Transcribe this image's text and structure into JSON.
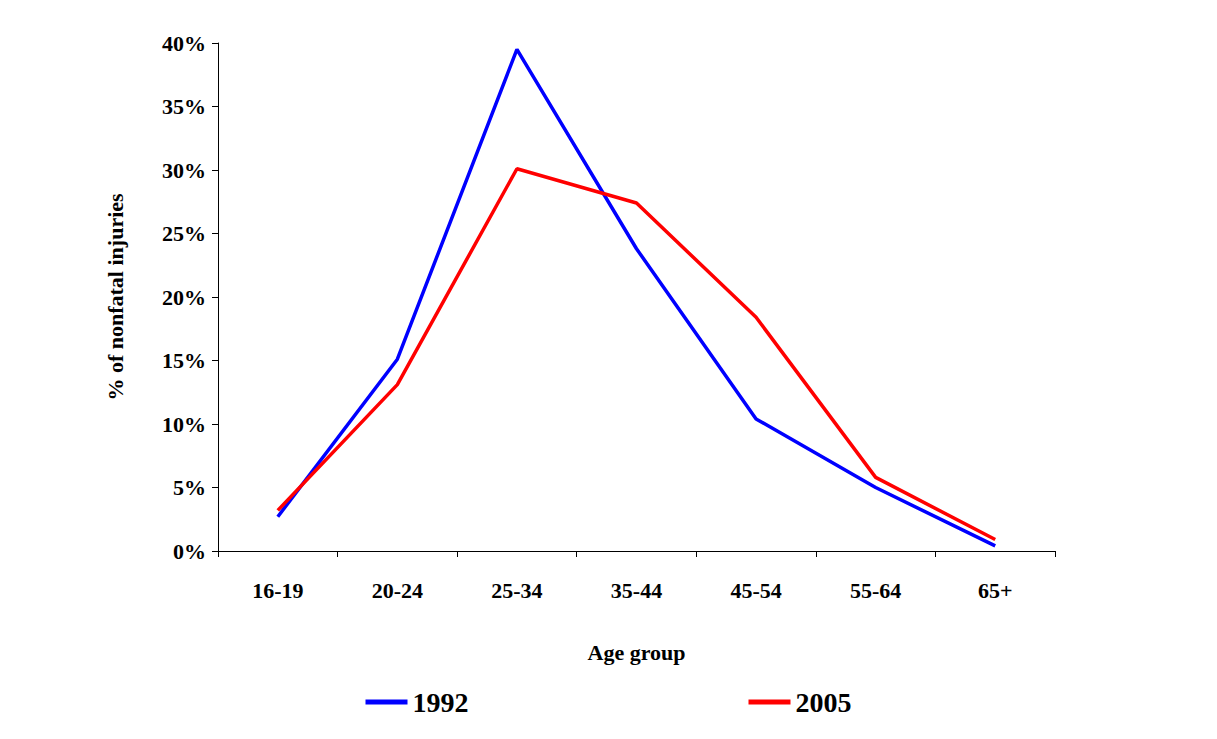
{
  "chart_data": {
    "type": "line",
    "x_label": "Age group",
    "y_label": "% of nonfatal injuries",
    "categories": [
      "16-19",
      "20-24",
      "25-34",
      "35-44",
      "45-54",
      "55-64",
      "65+"
    ],
    "series": [
      {
        "name": "1992",
        "color": "#0000ff",
        "values": [
          2.7,
          15.1,
          39.5,
          23.8,
          10.4,
          5.0,
          0.4
        ]
      },
      {
        "name": "2005",
        "color": "#ff0000",
        "values": [
          3.2,
          13.1,
          30.1,
          27.4,
          18.4,
          5.8,
          0.9
        ]
      }
    ],
    "ylim": [
      0,
      40
    ],
    "yticks": [
      {
        "value": 0,
        "label": "0%"
      },
      {
        "value": 5,
        "label": "5%"
      },
      {
        "value": 10,
        "label": "10%"
      },
      {
        "value": 15,
        "label": "15%"
      },
      {
        "value": 20,
        "label": "20%"
      },
      {
        "value": 25,
        "label": "25%"
      },
      {
        "value": 30,
        "label": "30%"
      },
      {
        "value": 35,
        "label": "35%"
      },
      {
        "value": 40,
        "label": "40%"
      }
    ],
    "grid": false,
    "legend": "bottom"
  }
}
